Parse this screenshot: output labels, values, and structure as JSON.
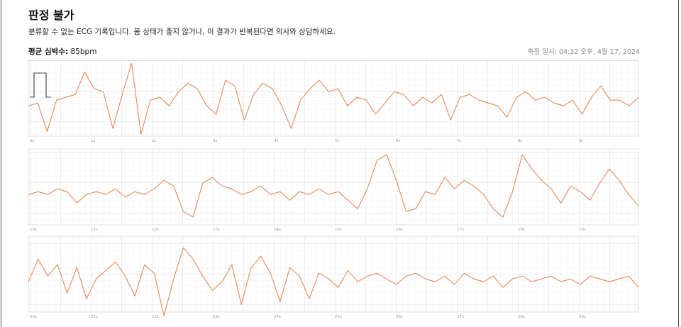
{
  "header": {
    "title": "판정 불가",
    "subtitle": "분류할 수 없는 ECG 기록입니다. 몸 상태가 좋지 않거나, 이 결과가 반복된다면 의사와 상담하세요.",
    "heart_rate_label": "평균 심박수:",
    "heart_rate": "85bpm",
    "recorded": "측정 일시: 04:32 오후, 4월 17, 2024"
  },
  "strips": [
    {
      "times": [
        "0s",
        "1s",
        "2s",
        "3s",
        "4s",
        "5s",
        "6s",
        "7s",
        "8s",
        "9s"
      ],
      "trace": [
        0.0,
        0.1,
        -0.9,
        0.2,
        0.3,
        0.4,
        1.2,
        0.6,
        0.5,
        -0.8,
        0.4,
        1.5,
        -1.0,
        0.2,
        0.3,
        0.0,
        0.5,
        0.8,
        0.6,
        0.0,
        -0.3,
        0.9,
        0.7,
        -0.5,
        0.4,
        0.8,
        0.6,
        0.0,
        -0.8,
        0.2,
        0.6,
        0.9,
        0.5,
        0.6,
        0.0,
        0.3,
        0.2,
        -0.3,
        0.1,
        0.5,
        0.4,
        0.0,
        0.3,
        0.1,
        0.4,
        -0.5,
        0.3,
        0.4,
        0.2,
        0.1,
        0.0,
        -0.4,
        0.3,
        0.5,
        0.2,
        0.3,
        0.1,
        0.0,
        0.2,
        -0.3,
        0.3,
        0.7,
        0.2,
        0.2,
        0.0,
        0.3
      ]
    },
    {
      "times": [
        "10s",
        "11s",
        "12s",
        "13s",
        "14s",
        "15s",
        "16s",
        "17s",
        "18s",
        "19s"
      ],
      "trace": [
        0.0,
        0.1,
        0.0,
        0.2,
        0.1,
        -0.3,
        0.0,
        0.1,
        0.0,
        0.2,
        -0.1,
        0.1,
        0.0,
        0.2,
        0.5,
        0.3,
        -0.6,
        -0.8,
        0.4,
        0.6,
        0.3,
        0.2,
        0.0,
        0.1,
        0.3,
        0.0,
        0.1,
        -0.2,
        0.1,
        0.0,
        0.2,
        0.0,
        0.1,
        -0.2,
        -0.5,
        0.2,
        1.2,
        1.4,
        0.5,
        -0.6,
        -0.5,
        0.1,
        0.0,
        0.6,
        0.2,
        0.5,
        0.3,
        0.0,
        -0.5,
        -0.8,
        0.1,
        1.4,
        0.9,
        0.5,
        0.2,
        -0.3,
        0.3,
        0.1,
        -0.2,
        0.4,
        0.9,
        0.5,
        0.0,
        -0.4
      ]
    },
    {
      "times": [
        "20s",
        "21s",
        "22s",
        "23s",
        "24s",
        "25s",
        "26s",
        "27s",
        "28s",
        "29s"
      ],
      "trace": [
        0.0,
        0.8,
        0.2,
        0.6,
        -0.4,
        0.5,
        -0.6,
        0.1,
        0.4,
        0.7,
        0.2,
        -0.5,
        0.6,
        0.3,
        -1.2,
        0.1,
        1.2,
        0.8,
        0.2,
        -0.3,
        0.0,
        0.6,
        -0.8,
        0.5,
        0.9,
        0.3,
        -0.7,
        0.5,
        0.2,
        -0.6,
        0.3,
        0.1,
        -0.2,
        0.4,
        0.0,
        0.2,
        0.3,
        0.1,
        -0.1,
        0.2,
        0.3,
        0.1,
        0.0,
        0.2,
        -0.1,
        0.3,
        0.1,
        0.0,
        0.2,
        -0.2,
        0.1,
        0.2,
        0.0,
        0.1,
        0.2,
        0.0,
        0.1,
        -0.1,
        0.2,
        0.1,
        0.0,
        0.1,
        0.2,
        -0.2
      ]
    }
  ]
}
